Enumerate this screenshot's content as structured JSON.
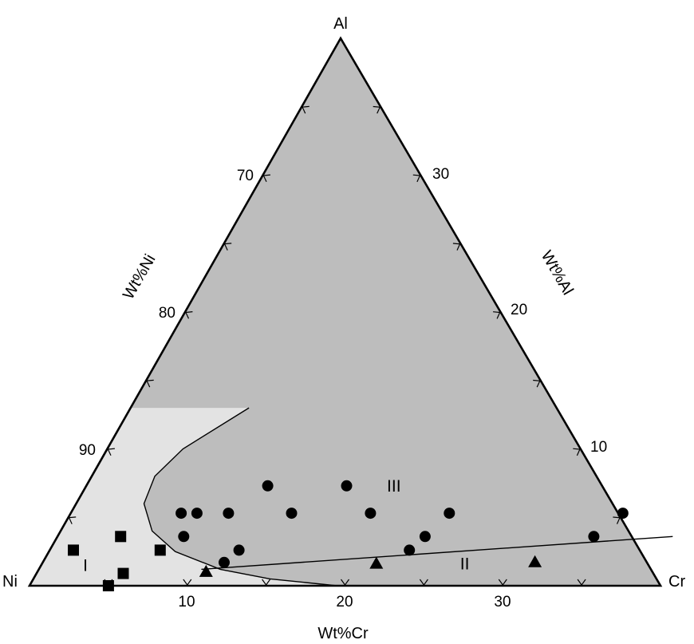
{
  "chart_data": {
    "type": "ternary",
    "vertices": {
      "top": "Al",
      "left": "Ni",
      "right": "Cr"
    },
    "axis_labels": {
      "left_side": "Wt%Ni",
      "right_side": "Wt%Al",
      "bottom": "Wt%Cr"
    },
    "tick_labels": {
      "left_side": [
        "70",
        "80",
        "90"
      ],
      "right_side": [
        "30",
        "20",
        "10"
      ],
      "bottom": [
        "10",
        "20",
        "30"
      ]
    },
    "left_side_values": [
      70,
      80,
      90
    ],
    "right_side_values": [
      30,
      20,
      10
    ],
    "bottom_values": [
      10,
      20,
      30
    ],
    "ranges": {
      "Ni": [
        60,
        100
      ],
      "Al": [
        0,
        40
      ],
      "Cr": [
        0,
        40
      ]
    },
    "regions": [
      {
        "label": "I",
        "cr": 2.8,
        "al": 1.5,
        "color": "#e3e3e3"
      },
      {
        "label": "II",
        "cr": 26.8,
        "al": 1.6,
        "color": "#bdbdbd"
      },
      {
        "label": "III",
        "cr": 19.5,
        "al": 7.3,
        "color": "#bdbdbd"
      }
    ],
    "boundaries": [
      {
        "name": "boundary-I",
        "points": [
          [
            7.5,
            13.0
          ],
          [
            4.8,
            10.0
          ],
          [
            4.0,
            8.0
          ],
          [
            4.3,
            6.0
          ],
          [
            5.8,
            4.0
          ],
          [
            8.0,
            2.5
          ],
          [
            11.5,
            1.2
          ],
          [
            15.0,
            0.5
          ],
          [
            19.5,
            0
          ]
        ]
      },
      {
        "name": "boundary-II",
        "points": [
          [
            10.3,
            1.2
          ],
          [
            39.0,
            3.6
          ]
        ]
      }
    ],
    "series": [
      {
        "marker": "square",
        "points": [
          [
            1.5,
            2.6
          ],
          [
            4.0,
            3.6
          ],
          [
            5.0,
            0
          ],
          [
            5.5,
            0.9
          ],
          [
            7.0,
            2.6
          ]
        ]
      },
      {
        "marker": "circle",
        "points": [
          [
            7.0,
            5.3
          ],
          [
            8.0,
            5.3
          ],
          [
            10.0,
            5.3
          ],
          [
            11.5,
            7.3
          ],
          [
            8.0,
            3.6
          ],
          [
            12.0,
            2.6
          ],
          [
            11.5,
            1.7
          ],
          [
            14.0,
            5.3
          ],
          [
            16.5,
            7.3
          ],
          [
            19.0,
            5.3
          ],
          [
            24.0,
            5.3
          ],
          [
            23.3,
            3.6
          ],
          [
            22.8,
            2.6
          ],
          [
            35.0,
            5.3
          ],
          [
            34.0,
            3.6
          ]
        ]
      },
      {
        "marker": "triangle",
        "points": [
          [
            10.7,
            1.0
          ],
          [
            21.2,
            1.6
          ],
          [
            31.2,
            1.7
          ]
        ]
      }
    ]
  }
}
